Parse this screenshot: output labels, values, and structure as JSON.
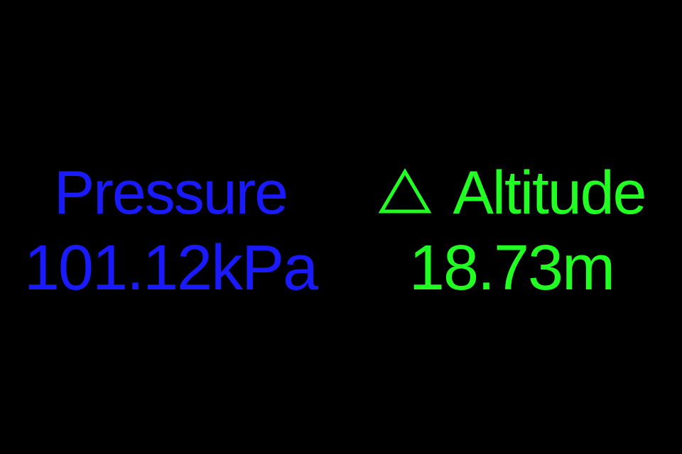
{
  "colors": {
    "background": "#000000",
    "pressure": "#1a1aff",
    "altitude": "#22ff22"
  },
  "pressure": {
    "label": "Pressure",
    "value": "101.12kPa"
  },
  "altitude": {
    "icon": "delta-icon",
    "label": "Altitude",
    "value": "18.73m"
  }
}
